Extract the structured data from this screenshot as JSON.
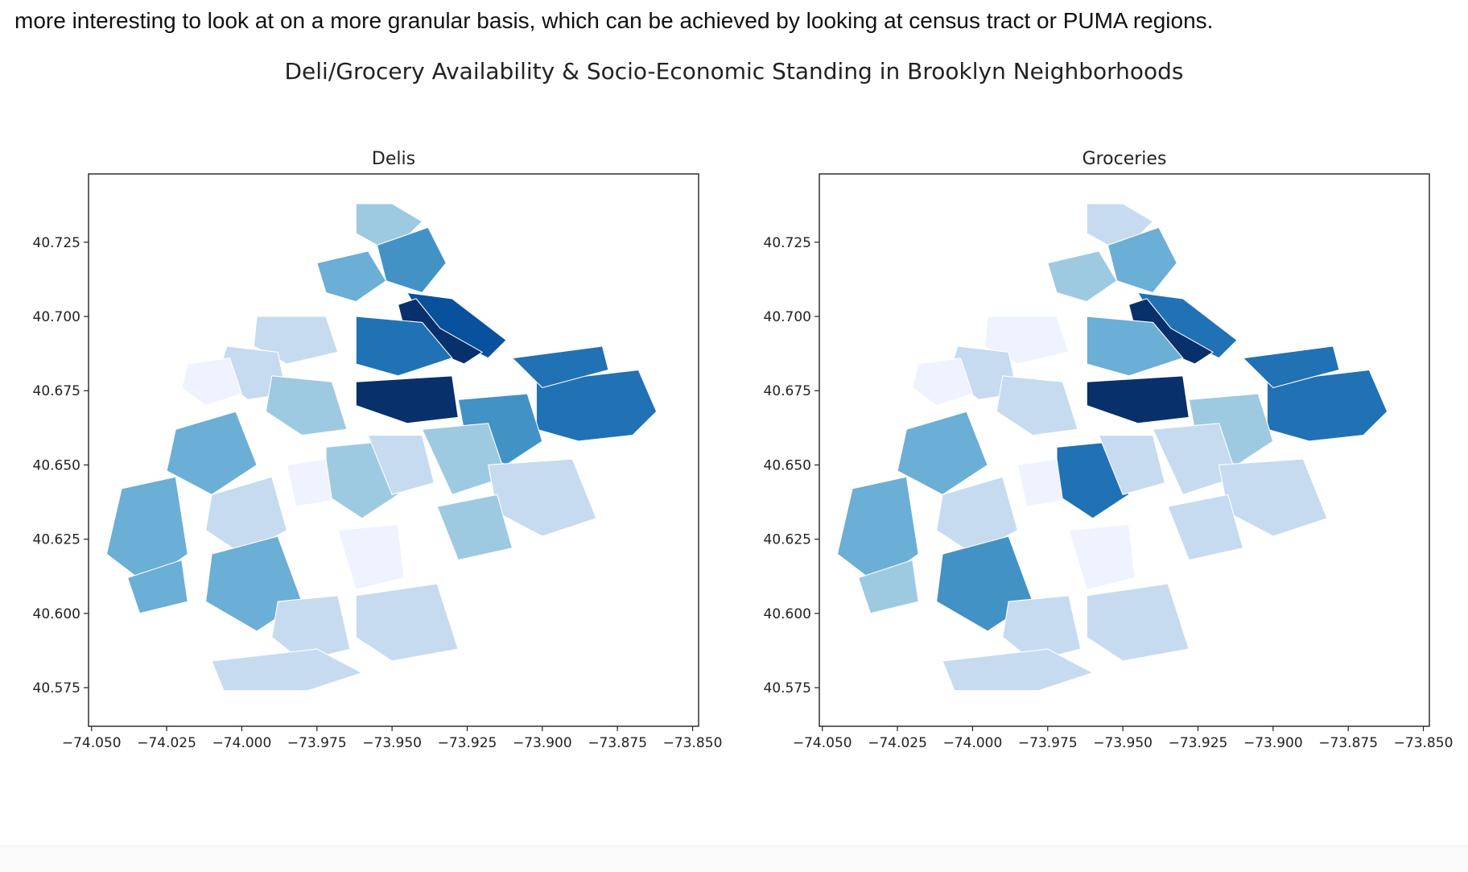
{
  "page": {
    "intro_text": "more interesting to look at on a more granular basis, which can be achieved by looking at census tract or PUMA regions."
  },
  "figure": {
    "title": "Deli/Grocery Availability & Socio-Economic Standing in Brooklyn Neighborhoods",
    "colormap": "Blues",
    "palette": [
      "#eff3ff",
      "#c6dbef",
      "#9ecae1",
      "#6baed6",
      "#4292c6",
      "#2171b5",
      "#08519c",
      "#08306b"
    ],
    "x_ticks": [
      -74.05,
      -74.025,
      -74.0,
      -73.975,
      -73.95,
      -73.925,
      -73.9,
      -73.875,
      -73.85
    ],
    "x_tick_labels": [
      "−74.050",
      "−74.025",
      "−74.000",
      "−73.975",
      "−73.950",
      "−73.925",
      "−73.900",
      "−73.875",
      "−73.850"
    ],
    "y_ticks": [
      40.725,
      40.7,
      40.675,
      40.65,
      40.625,
      40.6,
      40.575
    ],
    "y_tick_labels": [
      "40.725",
      "40.700",
      "40.675",
      "40.650",
      "40.625",
      "40.600",
      "40.575"
    ],
    "xlim": [
      -74.051,
      -73.848
    ],
    "ylim": [
      40.562,
      40.748
    ],
    "panels": [
      {
        "title": "Delis",
        "levels": {
          "greenpoint": 2,
          "williamsburg_n": 3,
          "williamsburg_s": 4,
          "bushwick": 6,
          "bushwick_core": 7,
          "bedstuy": 5,
          "crown_heights": 7,
          "east_ny": 5,
          "cypress": 5,
          "brownsville": 4,
          "downtown": 1,
          "brooklyn_heights": 1,
          "park_slope": 2,
          "red_hook": 0,
          "sunset_park": 3,
          "bay_ridge": 3,
          "bay_ridge_south": 3,
          "borough_park": 1,
          "bensonhurst": 3,
          "gravesend": 1,
          "flatbush": 2,
          "flatbush_east": 1,
          "east_flatbush": 2,
          "canarsie": 1,
          "flatlands": 2,
          "midwood": 0,
          "sheepshead": 1,
          "coney_island": 1,
          "kensington": 0
        }
      },
      {
        "title": "Groceries",
        "levels": {
          "greenpoint": 1,
          "williamsburg_n": 2,
          "williamsburg_s": 3,
          "bushwick": 5,
          "bushwick_core": 7,
          "bedstuy": 3,
          "crown_heights": 7,
          "east_ny": 5,
          "cypress": 5,
          "brownsville": 2,
          "downtown": 0,
          "brooklyn_heights": 1,
          "park_slope": 1,
          "red_hook": 0,
          "sunset_park": 3,
          "bay_ridge": 3,
          "bay_ridge_south": 2,
          "borough_park": 1,
          "bensonhurst": 4,
          "gravesend": 1,
          "flatbush": 5,
          "flatbush_east": 1,
          "east_flatbush": 1,
          "canarsie": 1,
          "flatlands": 1,
          "midwood": 0,
          "sheepshead": 1,
          "coney_island": 1,
          "kensington": 0
        }
      }
    ]
  }
}
